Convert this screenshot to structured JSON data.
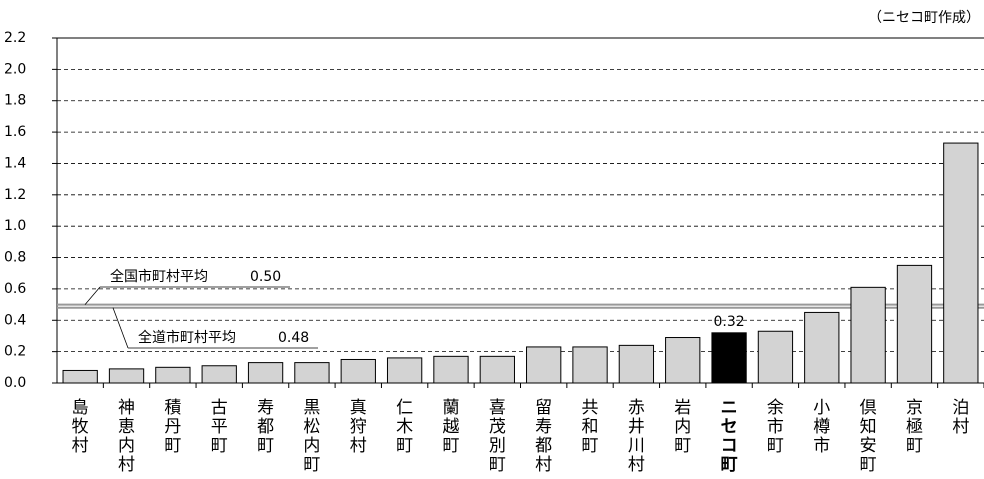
{
  "chart_data": {
    "type": "bar",
    "note": "（ニセコ町作成）",
    "categories": [
      "島牧村",
      "神恵内村",
      "積丹町",
      "古平町",
      "寿都町",
      "黒松内町",
      "真狩村",
      "仁木町",
      "蘭越町",
      "喜茂別町",
      "留寿都村",
      "共和町",
      "赤井川村",
      "岩内町",
      "ニセコ町",
      "余市町",
      "小樽市",
      "倶知安町",
      "京極町",
      "泊村"
    ],
    "values": [
      0.08,
      0.09,
      0.1,
      0.11,
      0.13,
      0.13,
      0.15,
      0.16,
      0.17,
      0.17,
      0.23,
      0.23,
      0.24,
      0.29,
      0.32,
      0.33,
      0.45,
      0.61,
      0.75,
      1.53
    ],
    "color": "#d3d3d3",
    "highlight_index": 14,
    "highlight_color": "#000000",
    "labeled_index": 14,
    "ylim": [
      0,
      2.2
    ],
    "yticks": [
      {
        "value": 0,
        "label": "0.0"
      },
      0.2,
      0.4,
      0.6,
      0.8,
      {
        "value": 1,
        "label": "1.0"
      },
      1.2,
      1.4,
      1.6,
      1.8,
      {
        "value": 2,
        "label": "2.0"
      },
      2.2
    ],
    "grid": true,
    "reference_lines": [
      {
        "label": "全国市町村平均",
        "value": 0.5,
        "value_label": "0.50"
      },
      {
        "label": "全道市町村平均",
        "value": 0.48,
        "value_label": "0.48"
      }
    ]
  }
}
